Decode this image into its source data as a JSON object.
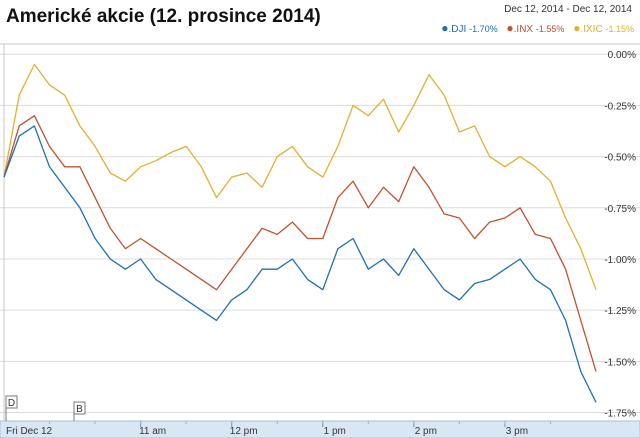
{
  "title": "Americké akcie (12. prosince 2014)",
  "date_range": "Dec 12, 2014 - Dec 12, 2014",
  "legend": [
    {
      "name": ".DJI",
      "change": "-1.70%",
      "color": "#1f6fb5"
    },
    {
      "name": ".INX",
      "change": "-1.55%",
      "color": "#c0522f"
    },
    {
      "name": ".IXIC",
      "change": "-1.15%",
      "color": "#e0b030"
    }
  ],
  "markers": [
    "D",
    "B"
  ],
  "chart_data": {
    "type": "line",
    "title": "Americké akcie (12. prosince 2014)",
    "x_label": "",
    "y_label": "",
    "x_ticks": [
      "Fri Dec 12",
      "11 am",
      "12 pm",
      "1 pm",
      "2 pm",
      "3 pm"
    ],
    "y_ticks": [
      "0.00%",
      "-0.25%",
      "-0.50%",
      "-0.75%",
      "-1.00%",
      "-1.25%",
      "-1.50%",
      "-1.75%"
    ],
    "ylim": [
      -1.85,
      0.05
    ],
    "x_time_range": [
      "09:30",
      "16:00"
    ],
    "grid": true,
    "series": [
      {
        "name": ".IXIC",
        "color": "#e0b030",
        "x": [
          "09:30",
          "09:40",
          "09:50",
          "10:00",
          "10:10",
          "10:20",
          "10:30",
          "10:40",
          "10:50",
          "11:00",
          "11:10",
          "11:20",
          "11:30",
          "11:40",
          "11:50",
          "12:00",
          "12:10",
          "12:20",
          "12:30",
          "12:40",
          "12:50",
          "13:00",
          "13:10",
          "13:20",
          "13:30",
          "13:40",
          "13:50",
          "14:00",
          "14:10",
          "14:20",
          "14:30",
          "14:40",
          "14:50",
          "15:00",
          "15:10",
          "15:20",
          "15:30",
          "15:40",
          "15:50",
          "16:00"
        ],
        "values": [
          -0.6,
          -0.2,
          -0.05,
          -0.15,
          -0.2,
          -0.35,
          -0.45,
          -0.58,
          -0.62,
          -0.55,
          -0.52,
          -0.48,
          -0.45,
          -0.55,
          -0.7,
          -0.6,
          -0.58,
          -0.65,
          -0.5,
          -0.45,
          -0.55,
          -0.6,
          -0.45,
          -0.25,
          -0.3,
          -0.22,
          -0.38,
          -0.25,
          -0.1,
          -0.2,
          -0.38,
          -0.35,
          -0.5,
          -0.55,
          -0.5,
          -0.55,
          -0.62,
          -0.8,
          -0.95,
          -1.15
        ]
      },
      {
        "name": ".INX",
        "color": "#c0522f",
        "x": [
          "09:30",
          "09:40",
          "09:50",
          "10:00",
          "10:10",
          "10:20",
          "10:30",
          "10:40",
          "10:50",
          "11:00",
          "11:10",
          "11:20",
          "11:30",
          "11:40",
          "11:50",
          "12:00",
          "12:10",
          "12:20",
          "12:30",
          "12:40",
          "12:50",
          "13:00",
          "13:10",
          "13:20",
          "13:30",
          "13:40",
          "13:50",
          "14:00",
          "14:10",
          "14:20",
          "14:30",
          "14:40",
          "14:50",
          "15:00",
          "15:10",
          "15:20",
          "15:30",
          "15:40",
          "15:50",
          "16:00"
        ],
        "values": [
          -0.6,
          -0.35,
          -0.3,
          -0.45,
          -0.55,
          -0.55,
          -0.7,
          -0.85,
          -0.95,
          -0.9,
          -0.95,
          -1.0,
          -1.05,
          -1.1,
          -1.15,
          -1.05,
          -0.95,
          -0.85,
          -0.88,
          -0.82,
          -0.9,
          -0.9,
          -0.7,
          -0.62,
          -0.75,
          -0.65,
          -0.72,
          -0.55,
          -0.65,
          -0.78,
          -0.8,
          -0.9,
          -0.82,
          -0.8,
          -0.75,
          -0.88,
          -0.9,
          -1.05,
          -1.3,
          -1.55
        ]
      },
      {
        "name": ".DJI",
        "color": "#1f6fb5",
        "x": [
          "09:30",
          "09:40",
          "09:50",
          "10:00",
          "10:10",
          "10:20",
          "10:30",
          "10:40",
          "10:50",
          "11:00",
          "11:10",
          "11:20",
          "11:30",
          "11:40",
          "11:50",
          "12:00",
          "12:10",
          "12:20",
          "12:30",
          "12:40",
          "12:50",
          "13:00",
          "13:10",
          "13:20",
          "13:30",
          "13:40",
          "13:50",
          "14:00",
          "14:10",
          "14:20",
          "14:30",
          "14:40",
          "14:50",
          "15:00",
          "15:10",
          "15:20",
          "15:30",
          "15:40",
          "15:50",
          "16:00"
        ],
        "values": [
          -0.6,
          -0.4,
          -0.35,
          -0.55,
          -0.65,
          -0.75,
          -0.9,
          -1.0,
          -1.05,
          -1.0,
          -1.1,
          -1.15,
          -1.2,
          -1.25,
          -1.3,
          -1.2,
          -1.15,
          -1.05,
          -1.05,
          -1.0,
          -1.1,
          -1.15,
          -0.95,
          -0.9,
          -1.05,
          -1.0,
          -1.08,
          -0.95,
          -1.05,
          -1.15,
          -1.2,
          -1.12,
          -1.1,
          -1.05,
          -1.0,
          -1.1,
          -1.15,
          -1.3,
          -1.55,
          -1.7
        ]
      }
    ]
  }
}
